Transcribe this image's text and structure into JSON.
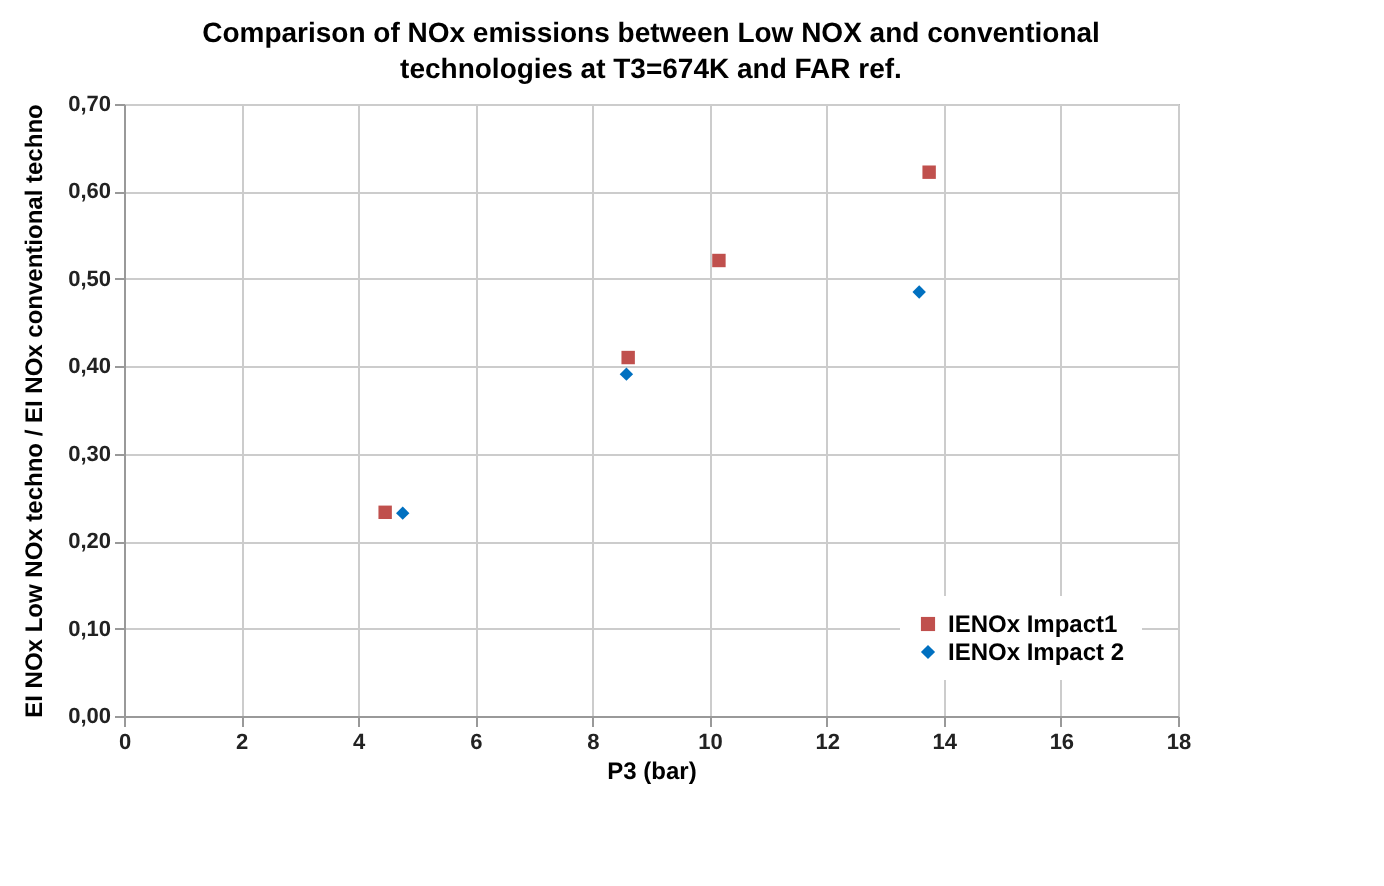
{
  "chart_data": {
    "type": "scatter",
    "title": "Comparison of NOx emissions between Low NOX and conventional technologies at T3=674K and  FAR ref.",
    "xlabel": "P3 (bar)",
    "ylabel": "EI NOx  Low NOx techno / EI NOx conventional  techno",
    "series": [
      {
        "name": "IENOx Impact1",
        "color": "#c0504d",
        "marker": "square",
        "x": [
          4.46,
          8.61,
          10.16,
          13.75
        ],
        "values": [
          0.233,
          0.41,
          0.521,
          0.622
        ]
      },
      {
        "name": "IENOx Impact 2",
        "color": "#0070c0",
        "marker": "diamond",
        "x": [
          4.76,
          8.58,
          13.58
        ],
        "values": [
          0.232,
          0.391,
          0.485
        ]
      }
    ],
    "xlim": [
      0,
      18
    ],
    "xticks": [
      0,
      2,
      4,
      6,
      8,
      10,
      12,
      14,
      16,
      18
    ],
    "ylim": [
      0,
      0.7
    ],
    "yticks": [
      {
        "value": 0,
        "label": "0,00"
      },
      {
        "value": 0.1,
        "label": "0,10"
      },
      {
        "value": 0.2,
        "label": "0,20"
      },
      {
        "value": 0.3,
        "label": "0,30"
      },
      {
        "value": 0.4,
        "label": "0,40"
      },
      {
        "value": 0.5,
        "label": "0,50"
      },
      {
        "value": 0.6,
        "label": "0,60"
      },
      {
        "value": 0.7,
        "label": "0,70"
      }
    ],
    "grid": true,
    "legend": "bottom right"
  }
}
